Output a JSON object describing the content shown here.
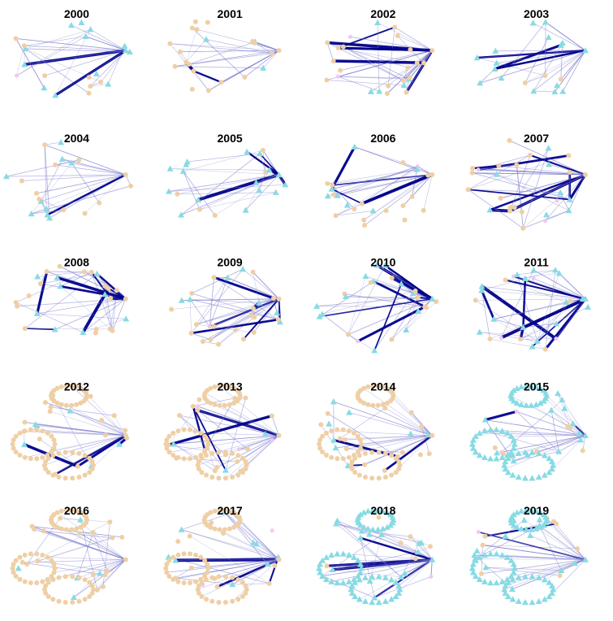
{
  "figure": {
    "panels": [
      {
        "title": "2000",
        "density": 0.55,
        "node_mix": "blue",
        "loops": false
      },
      {
        "title": "2001",
        "density": 0.6,
        "node_mix": "tan",
        "loops": false
      },
      {
        "title": "2002",
        "density": 0.85,
        "node_mix": "tan",
        "loops": false
      },
      {
        "title": "2003",
        "density": 0.45,
        "node_mix": "blue",
        "loops": false
      },
      {
        "title": "2004",
        "density": 0.5,
        "node_mix": "tan",
        "loops": false
      },
      {
        "title": "2005",
        "density": 0.55,
        "node_mix": "blue",
        "loops": false
      },
      {
        "title": "2006",
        "density": 0.8,
        "node_mix": "tan",
        "loops": false
      },
      {
        "title": "2007",
        "density": 1.0,
        "node_mix": "tan",
        "loops": false
      },
      {
        "title": "2008",
        "density": 1.0,
        "node_mix": "tan",
        "loops": false
      },
      {
        "title": "2009",
        "density": 1.0,
        "node_mix": "tan",
        "loops": false
      },
      {
        "title": "2010",
        "density": 0.9,
        "node_mix": "blue",
        "loops": false
      },
      {
        "title": "2011",
        "density": 1.0,
        "node_mix": "blue",
        "loops": false
      },
      {
        "title": "2012",
        "density": 0.35,
        "node_mix": "tan",
        "loops": true
      },
      {
        "title": "2013",
        "density": 0.5,
        "node_mix": "tan",
        "loops": true
      },
      {
        "title": "2014",
        "density": 0.4,
        "node_mix": "tan",
        "loops": true
      },
      {
        "title": "2015",
        "density": 0.4,
        "node_mix": "blue",
        "loops": true
      },
      {
        "title": "2016",
        "density": 0.45,
        "node_mix": "tan",
        "loops": true
      },
      {
        "title": "2017",
        "density": 0.35,
        "node_mix": "tan",
        "loops": true
      },
      {
        "title": "2018",
        "density": 0.6,
        "node_mix": "blue",
        "loops": true
      },
      {
        "title": "2019",
        "density": 0.45,
        "node_mix": "blue",
        "loops": true
      }
    ],
    "colors": {
      "edge": "#00008b",
      "edge_light": "#8080d0",
      "node_tan": "#efcfa5",
      "node_blue": "#87dbe3",
      "node_pink": "#f0c8ef",
      "background": "#ffffff"
    },
    "node_shapes": {
      "tan": "circle",
      "blue": "triangle"
    }
  }
}
